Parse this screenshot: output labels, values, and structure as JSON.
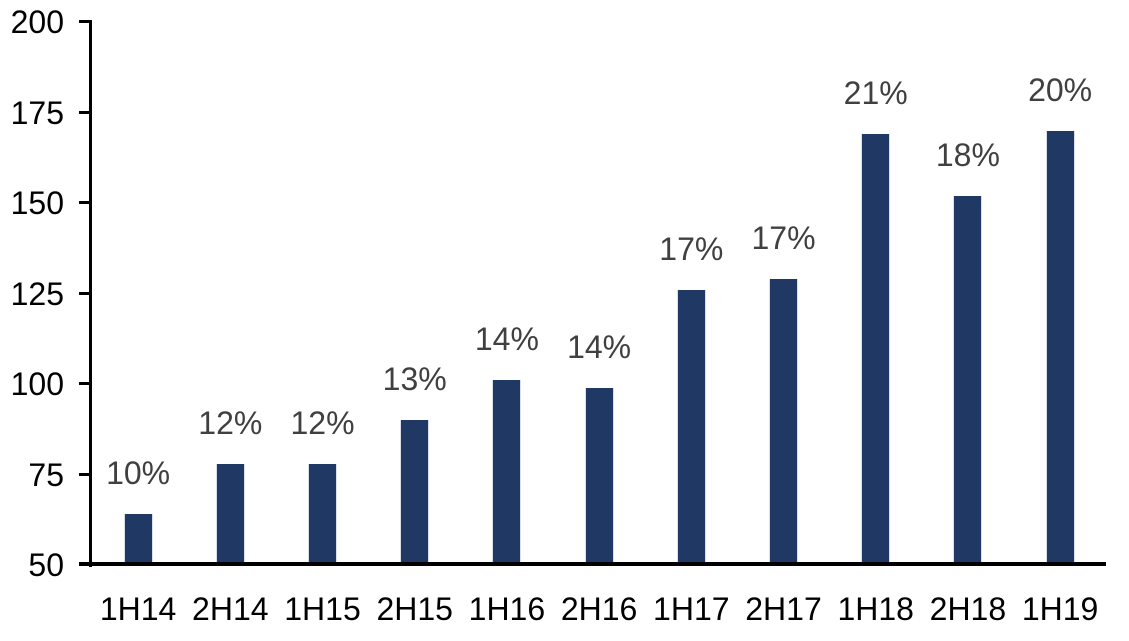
{
  "chart_data": {
    "type": "bar",
    "title": "",
    "xlabel": "",
    "ylabel": "",
    "categories": [
      "1H14",
      "2H14",
      "1H15",
      "2H15",
      "1H16",
      "2H16",
      "1H17",
      "2H17",
      "1H18",
      "2H18",
      "1H19"
    ],
    "values": [
      64,
      78,
      78,
      90,
      101,
      99,
      126,
      129,
      169,
      152,
      170
    ],
    "bar_labels": [
      "10%",
      "12%",
      "12%",
      "13%",
      "14%",
      "14%",
      "17%",
      "17%",
      "21%",
      "18%",
      "20%"
    ],
    "ylim": [
      50,
      200
    ],
    "yticks": [
      50,
      75,
      100,
      125,
      150,
      175,
      200
    ],
    "grid": false,
    "legend_position": "none",
    "colors": {
      "bar_fill": "#203864",
      "bar_edge": "#d9dee8",
      "data_label": "#404040",
      "axis": "#000000",
      "tick_label": "#000000",
      "background": "#ffffff"
    }
  }
}
